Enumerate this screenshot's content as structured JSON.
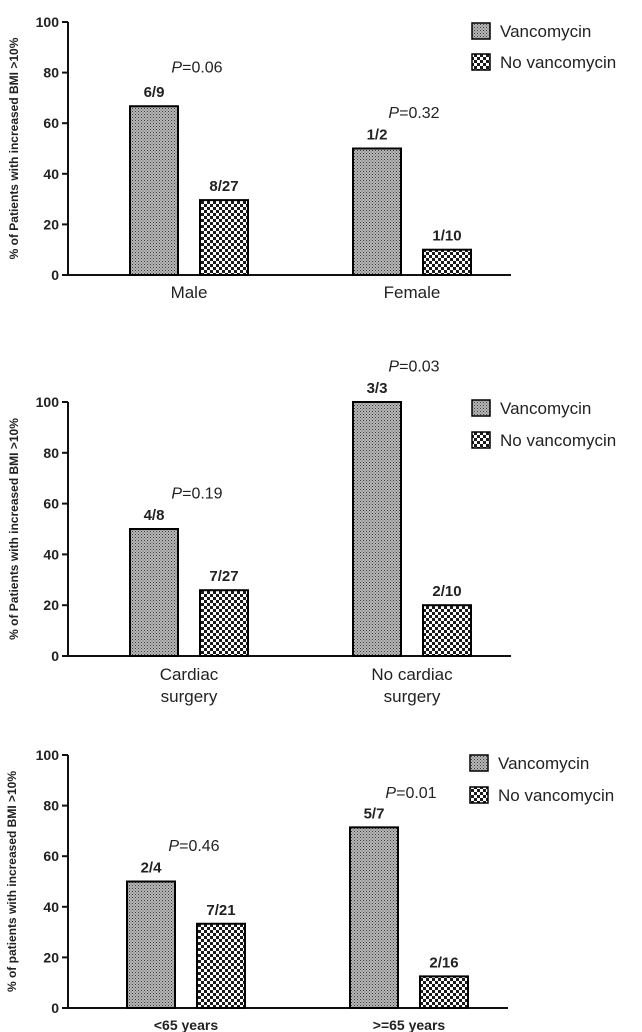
{
  "colors": {
    "axis": "#111111",
    "text": "#222222",
    "pval": "#333333",
    "bar_stroke": "#000000"
  },
  "chart_data": [
    {
      "type": "bar",
      "ylabel": "% of Patients with increased BMI >10%",
      "ylim": [
        0,
        100
      ],
      "yticks": [
        "0",
        "20",
        "40",
        "60",
        "80",
        "100"
      ],
      "categories": [
        "Male",
        "Female"
      ],
      "series": [
        {
          "name": "Vancomycin",
          "pattern": "fine",
          "values": [
            66.7,
            50
          ],
          "labels": [
            "6/9",
            "1/2"
          ]
        },
        {
          "name": "No vancomycin",
          "pattern": "checker",
          "values": [
            29.6,
            10
          ],
          "labels": [
            "8/27",
            "1/10"
          ]
        }
      ],
      "p_values": [
        {
          "prefix": "P",
          "text": "=0.06",
          "group": 0,
          "y": 82
        },
        {
          "prefix": "P",
          "text": "=0.32",
          "group": 1,
          "y": 64
        }
      ],
      "legend": "right"
    },
    {
      "type": "bar",
      "ylabel": "% of Patients with increased BMI >10%",
      "ylim": [
        0,
        100
      ],
      "yticks": [
        "0",
        "20",
        "40",
        "60",
        "80",
        "100"
      ],
      "categories": [
        "Cardiac\nsurgery",
        "No cardiac\nsurgery"
      ],
      "series": [
        {
          "name": "Vancomycin",
          "pattern": "fine",
          "values": [
            50,
            100
          ],
          "labels": [
            "4/8",
            "3/3"
          ]
        },
        {
          "name": "No vancomycin",
          "pattern": "checker",
          "values": [
            25.9,
            20
          ],
          "labels": [
            "7/27",
            "2/10"
          ]
        }
      ],
      "p_values": [
        {
          "prefix": "P",
          "text": "=0.19",
          "group": 0,
          "y": 64
        },
        {
          "prefix": "P",
          "text": "=0.03",
          "group": 1,
          "y": 114
        }
      ],
      "legend": "right"
    },
    {
      "type": "bar",
      "ylabel": "% of patients with increased BMI >10%",
      "ylim": [
        0,
        100
      ],
      "yticks": [
        "0",
        "20",
        "40",
        "60",
        "80",
        "100"
      ],
      "categories": [
        "<65 years",
        ">=65 years"
      ],
      "series": [
        {
          "name": "Vancomycin",
          "pattern": "fine",
          "values": [
            50,
            71.4
          ],
          "labels": [
            "2/4",
            "5/7"
          ]
        },
        {
          "name": "No vancomycin",
          "pattern": "checker",
          "values": [
            33.3,
            12.5
          ],
          "labels": [
            "7/21",
            "2/16"
          ]
        }
      ],
      "p_values": [
        {
          "prefix": "P",
          "text": "=0.46",
          "group": 0,
          "y": 64
        },
        {
          "prefix": "P",
          "text": "=0.01",
          "group": 1,
          "y": 85
        }
      ],
      "legend": "right"
    }
  ]
}
